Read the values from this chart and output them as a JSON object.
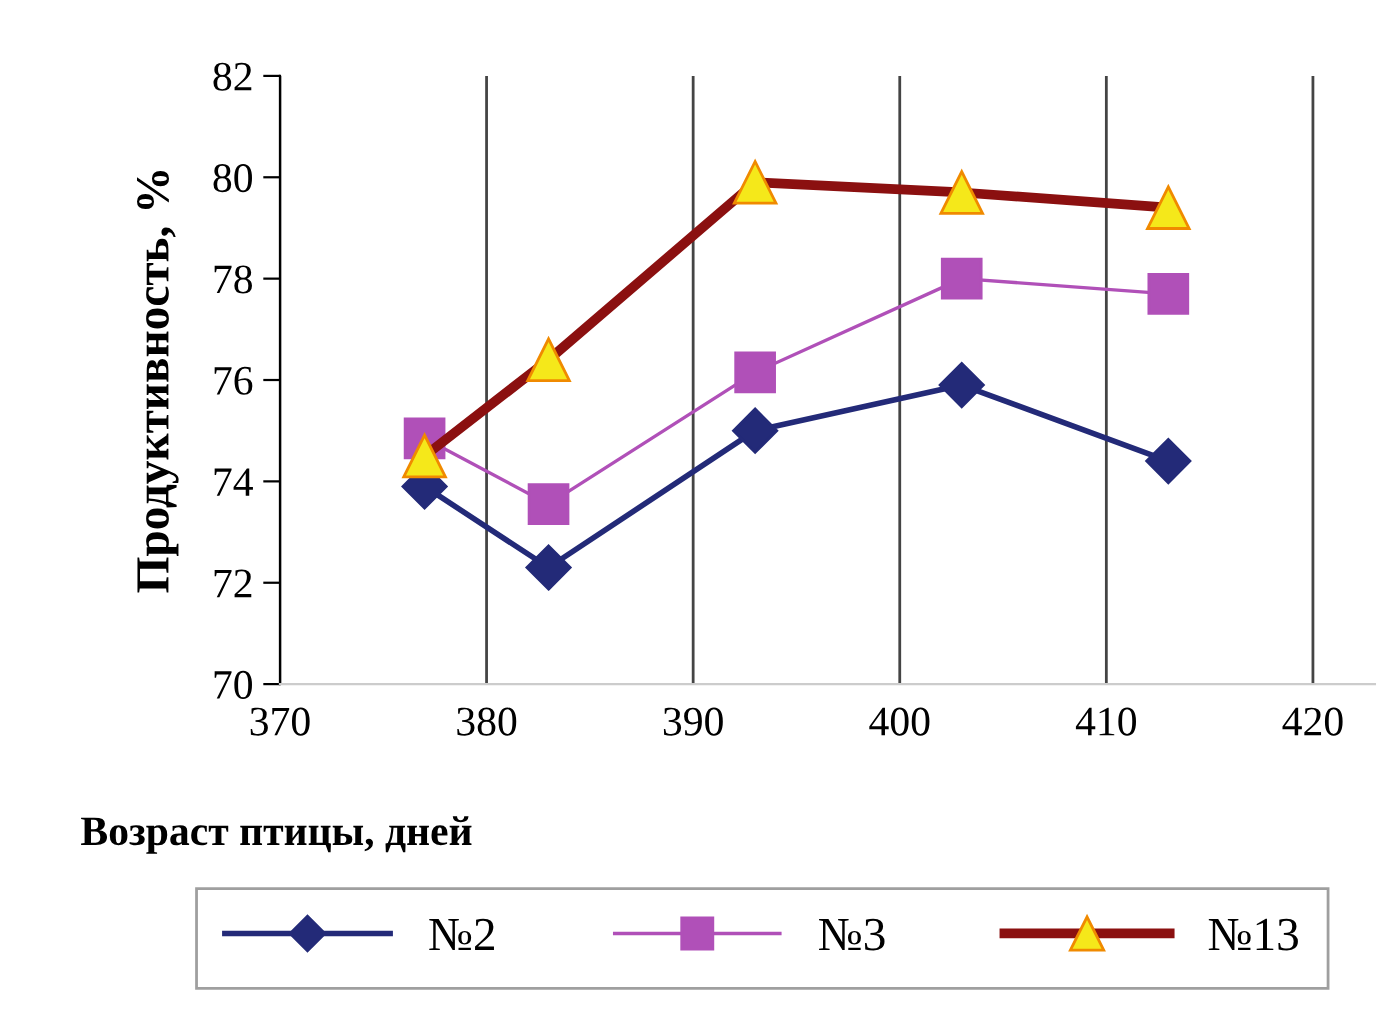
{
  "chart_data": {
    "type": "line",
    "xlabel": "Возраст птицы, дней",
    "ylabel": "Продуктивность, %",
    "x": [
      377,
      383,
      393,
      403,
      413
    ],
    "series": [
      {
        "name": "№2",
        "color": "#232a78",
        "marker": "diamond",
        "values": [
          73.9,
          72.3,
          75.0,
          75.9,
          74.4
        ]
      },
      {
        "name": "№3",
        "color": "#b050b8",
        "marker": "square",
        "values": [
          74.85,
          73.55,
          76.15,
          78.0,
          77.7
        ]
      },
      {
        "name": "№13",
        "color": "#8b1010",
        "marker": "triangle",
        "values": [
          74.5,
          76.4,
          79.9,
          79.7,
          79.4
        ]
      }
    ],
    "xlim": [
      370,
      423
    ],
    "xticks": [
      370,
      380,
      390,
      400,
      410,
      420
    ],
    "ylim": [
      70,
      82
    ],
    "yticks": [
      70,
      72,
      74,
      76,
      78,
      80,
      82
    ],
    "grid": "x",
    "legend": "bottom"
  }
}
